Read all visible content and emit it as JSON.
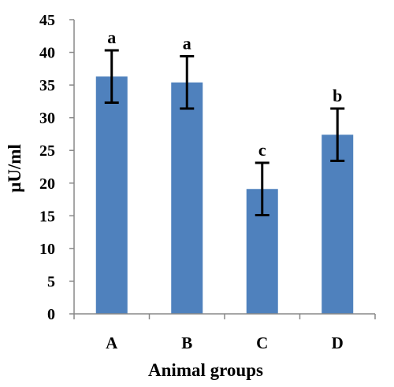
{
  "chart_data": {
    "type": "bar",
    "categories": [
      "A",
      "B",
      "C",
      "D"
    ],
    "values": [
      36.3,
      35.4,
      19.1,
      27.4
    ],
    "errors": [
      4.0,
      4.0,
      4.0,
      4.0
    ],
    "annotations": [
      "a",
      "a",
      "c",
      "b"
    ],
    "xlabel": "Animal groups",
    "ylabel": "μU/ml",
    "ylim": [
      0,
      45
    ],
    "yticks": [
      "0",
      "5",
      "10",
      "15",
      "20",
      "25",
      "30",
      "35",
      "40",
      "45"
    ],
    "grid": false,
    "legend": "none",
    "bar_color": "#4F81BD",
    "error_bar_color": "#000000",
    "axis_color": "#888888"
  }
}
